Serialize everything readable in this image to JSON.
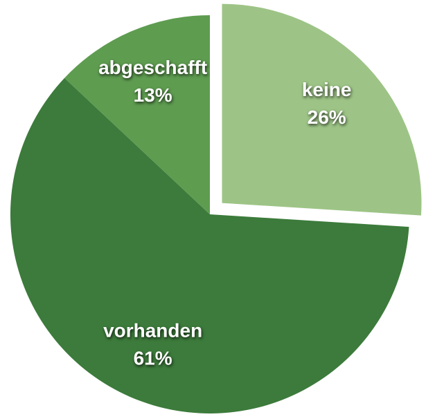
{
  "chart_data": {
    "type": "pie",
    "categories": [
      "keine",
      "vorhanden",
      "abgeschafft"
    ],
    "values": [
      26,
      61,
      13
    ],
    "value_labels": [
      "26%",
      "61%",
      "13%"
    ],
    "colors": [
      "#9dc486",
      "#3c7b3b",
      "#5e9c50"
    ],
    "explode": [
      true,
      false,
      false
    ]
  }
}
